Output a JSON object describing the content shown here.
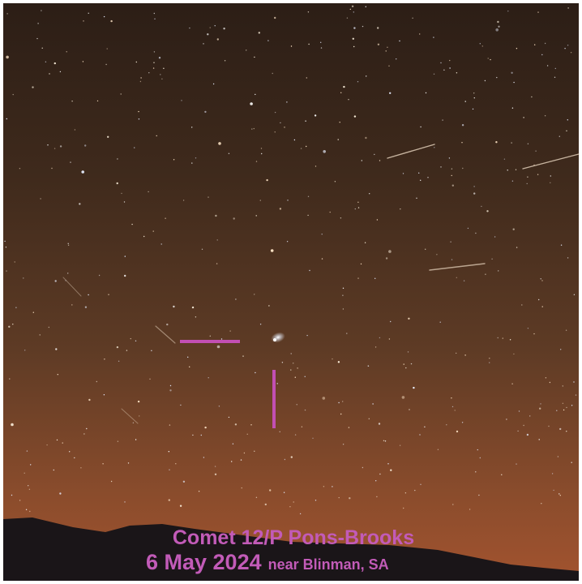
{
  "caption": {
    "title": "Comet 12/P Pons-Brooks",
    "date": "6 May 2024",
    "location": "near Blinman, SA"
  }
}
